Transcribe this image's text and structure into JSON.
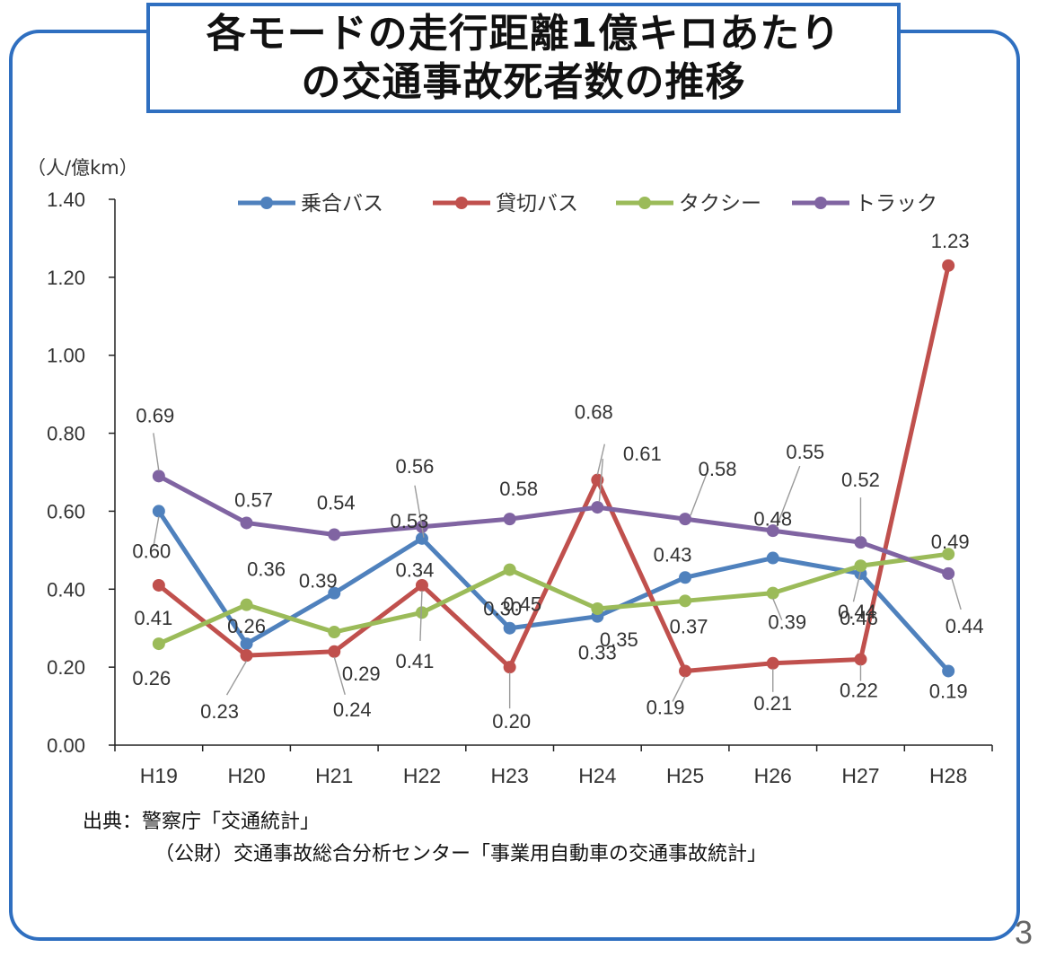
{
  "title": {
    "line1": "各モードの走行距離1億キロあたり",
    "line2": "の交通事故死者数の推移"
  },
  "chart_data": {
    "type": "line",
    "ylabel": "（人/億km）",
    "ylim": [
      0,
      1.4
    ],
    "ytick_values": [
      0,
      0.2,
      0.4,
      0.6,
      0.8,
      1.0,
      1.2,
      1.4
    ],
    "ytick_labels": [
      "0.00",
      "0.20",
      "0.40",
      "0.60",
      "0.80",
      "1.00",
      "1.20",
      "1.40"
    ],
    "categories": [
      "H19",
      "H20",
      "H21",
      "H22",
      "H23",
      "H24",
      "H25",
      "H26",
      "H27",
      "H28"
    ],
    "legend_position": "top",
    "series": [
      {
        "name": "乗合バス",
        "color": "#4f81bd",
        "values": [
          0.6,
          0.26,
          0.39,
          0.53,
          0.3,
          0.33,
          0.43,
          0.48,
          0.44,
          0.19
        ]
      },
      {
        "name": "貸切バス",
        "color": "#c0504d",
        "values": [
          0.41,
          0.23,
          0.24,
          0.41,
          0.2,
          0.68,
          0.19,
          0.21,
          0.22,
          1.23
        ]
      },
      {
        "name": "タクシー",
        "color": "#9bbb59",
        "values": [
          0.26,
          0.36,
          0.29,
          0.34,
          0.45,
          0.35,
          0.37,
          0.39,
          0.46,
          0.49
        ]
      },
      {
        "name": "トラック",
        "color": "#8064a2",
        "values": [
          0.69,
          0.57,
          0.54,
          0.56,
          0.58,
          0.61,
          0.58,
          0.55,
          0.52,
          0.44
        ]
      }
    ]
  },
  "source": {
    "line1": "出典：警察庁「交通統計」",
    "line2": "（公財）交通事故総合分析センター「事業用自動車の交通事故統計」"
  },
  "page_number": "3"
}
